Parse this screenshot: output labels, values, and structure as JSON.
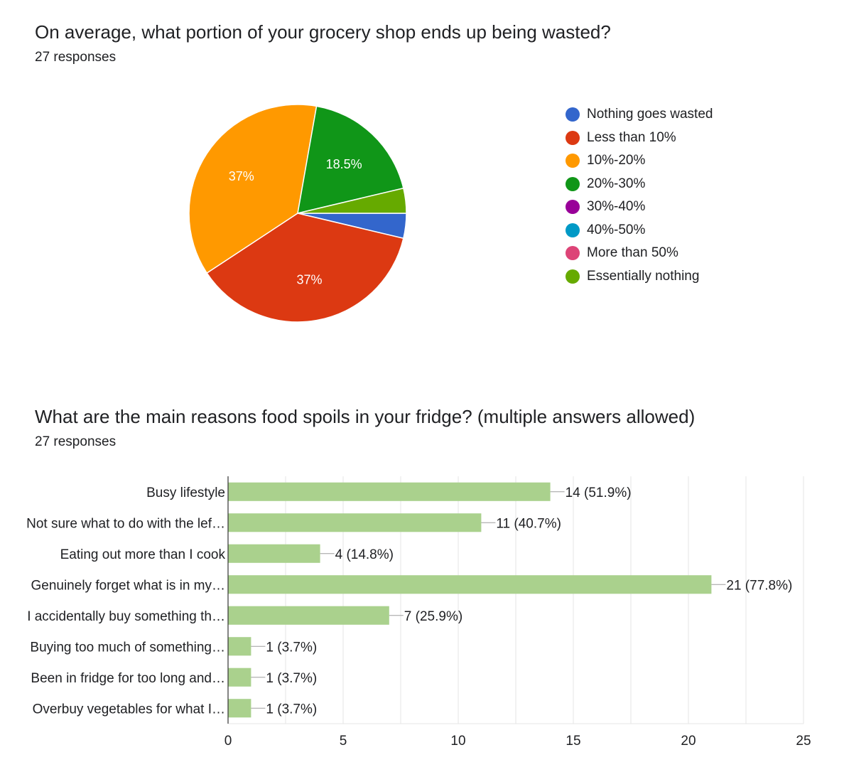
{
  "questions": [
    {
      "title": "On average, what portion of your grocery shop ends up being wasted?",
      "responses": "27 responses"
    },
    {
      "title": "What are the main reasons food spoils in your fridge? (multiple answers allowed)",
      "responses": "27 responses"
    }
  ],
  "colors": {
    "blue": "#3366cc",
    "red": "#dc3912",
    "orange": "#ff9900",
    "green": "#109618",
    "purple": "#990099",
    "teal": "#0099c6",
    "pink": "#dd4477",
    "lime": "#66aa00",
    "bar": "#aad18d"
  },
  "chart_data": [
    {
      "type": "pie",
      "title": "On average, what portion of your grocery shop ends up being wasted?",
      "total": 27,
      "slices": [
        {
          "label": "Nothing goes wasted",
          "value": 1,
          "percent": 3.7,
          "color": "#3366cc",
          "shown_label": ""
        },
        {
          "label": "Less than 10%",
          "value": 10,
          "percent": 37,
          "color": "#dc3912",
          "shown_label": "37%"
        },
        {
          "label": "10%-20%",
          "value": 10,
          "percent": 37,
          "color": "#ff9900",
          "shown_label": "37%"
        },
        {
          "label": "20%-30%",
          "value": 5,
          "percent": 18.5,
          "color": "#109618",
          "shown_label": "18.5%"
        },
        {
          "label": "30%-40%",
          "value": 0,
          "percent": 0,
          "color": "#990099",
          "shown_label": ""
        },
        {
          "label": "40%-50%",
          "value": 0,
          "percent": 0,
          "color": "#0099c6",
          "shown_label": ""
        },
        {
          "label": "More than 50%",
          "value": 0,
          "percent": 0,
          "color": "#dd4477",
          "shown_label": ""
        },
        {
          "label": "Essentially nothing",
          "value": 1,
          "percent": 3.7,
          "color": "#66aa00",
          "shown_label": ""
        }
      ],
      "legend_position": "right"
    },
    {
      "type": "bar",
      "orientation": "horizontal",
      "title": "What are the main reasons food spoils in your fridge? (multiple answers allowed)",
      "categories": [
        "Busy lifestyle",
        "Not sure what to do with the lef…",
        "Eating out more than I cook",
        "Genuinely forget what is in my…",
        "I accidentally buy something th…",
        "Buying too much of something…",
        "Been in fridge for too long and…",
        "Overbuy vegetables for what I…"
      ],
      "values": [
        14,
        11,
        4,
        21,
        7,
        1,
        1,
        1
      ],
      "data_labels": [
        "14 (51.9%)",
        "11 (40.7%)",
        "4 (14.8%)",
        "21 (77.8%)",
        "7 (25.9%)",
        "1 (3.7%)",
        "1 (3.7%)",
        "1 (3.7%)"
      ],
      "xlim": [
        0,
        25
      ],
      "xticks": [
        0,
        5,
        10,
        15,
        20,
        25
      ],
      "grid": true,
      "color": "#aad18d"
    }
  ]
}
